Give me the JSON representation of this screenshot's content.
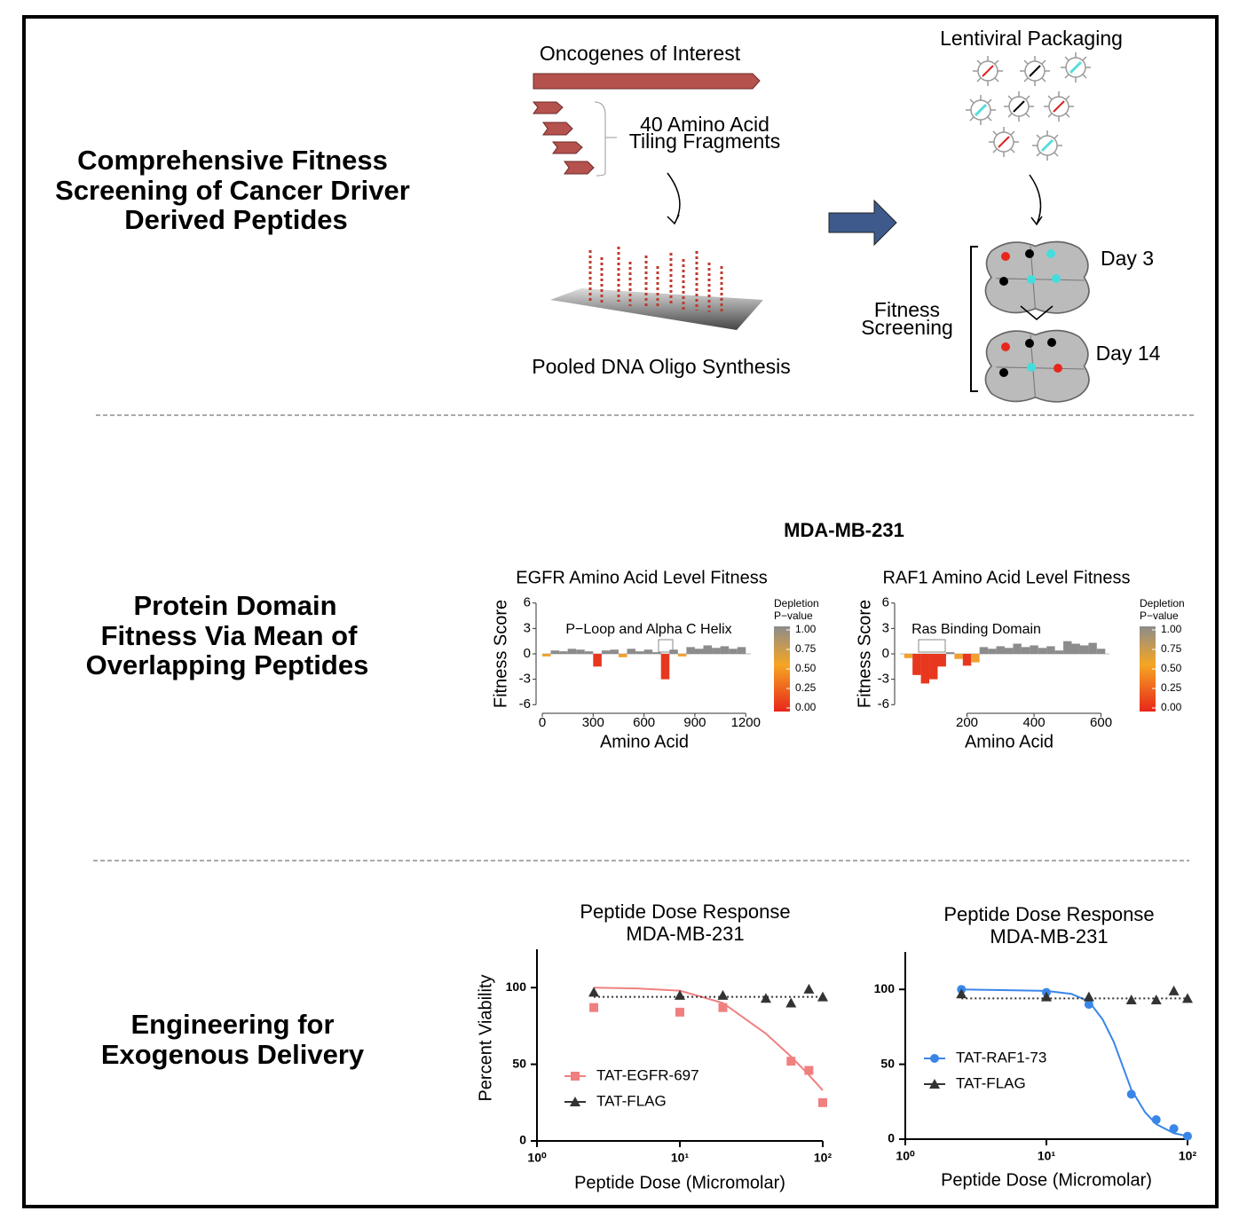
{
  "sections": [
    {
      "title_lines": [
        "Comprehensive Fitness",
        "Screening of Cancer Driver",
        "Derived Peptides"
      ]
    },
    {
      "title_lines": [
        "Protein Domain",
        "Fitness Via Mean of",
        "Overlapping Peptides"
      ]
    },
    {
      "title_lines": [
        "Engineering for",
        "Exogenous Delivery"
      ]
    }
  ],
  "workflow": {
    "oncogenes": "Oncogenes of Interest",
    "tiling_lines": [
      "40 Amino Acid",
      "Tiling Fragments"
    ],
    "synthesis": "Pooled DNA Oligo Synthesis",
    "packaging": "Lentiviral Packaging",
    "screening_lines": [
      "Fitness",
      "Screening"
    ],
    "day_early": "Day 3",
    "day_late": "Day 14"
  },
  "fitness_header": "MDA-MB-231",
  "chart_data": [
    {
      "type": "area",
      "title": "EGFR Amino Acid Level Fitness",
      "x_label": "Amino Acid",
      "y_label": "Fitness Score",
      "annotation": "P−Loop and Alpha C Helix",
      "x": [
        25,
        75,
        125,
        175,
        225,
        275,
        325,
        375,
        425,
        475,
        525,
        575,
        625,
        675,
        725,
        775,
        825,
        875,
        925,
        975,
        1025,
        1075,
        1125,
        1175
      ],
      "values": [
        -0.3,
        0.4,
        0.3,
        0.6,
        0.5,
        0.3,
        -1.5,
        0.4,
        0.5,
        -0.4,
        0.6,
        0.3,
        0.5,
        0.2,
        -3.0,
        0.5,
        -0.3,
        0.8,
        0.6,
        1.0,
        0.7,
        0.9,
        0.6,
        0.8
      ],
      "xlim": [
        0,
        1230
      ],
      "xticks": [
        0,
        300,
        600,
        900,
        1200
      ],
      "ylim": [
        -6.6,
        6.6
      ],
      "yticks": [
        -6,
        -3,
        0,
        3,
        6
      ],
      "legend": {
        "title_lines": [
          "Depletion",
          "P−value"
        ],
        "ticks": [
          {
            "value": 1,
            "label": "1.00"
          },
          {
            "value": 0.75,
            "label": "0.75"
          },
          {
            "value": 0.5,
            "label": "0.50"
          },
          {
            "value": 0.25,
            "label": "0.25"
          },
          {
            "value": 0,
            "label": "0.00"
          }
        ]
      }
    },
    {
      "type": "area",
      "title": "RAF1 Amino Acid Level Fitness",
      "x_label": "Amino Acid",
      "y_label": "Fitness Score",
      "annotation": "Ras Binding Domain",
      "x": [
        25,
        50,
        75,
        100,
        125,
        150,
        175,
        200,
        225,
        250,
        275,
        300,
        325,
        350,
        375,
        400,
        425,
        450,
        475,
        500,
        525,
        550,
        575,
        600
      ],
      "values": [
        -0.5,
        -2.5,
        -3.5,
        -3.0,
        -1.5,
        0.2,
        -0.6,
        -1.4,
        -1.0,
        0.8,
        0.6,
        0.9,
        0.7,
        1.2,
        0.8,
        1.0,
        0.7,
        0.9,
        0.4,
        1.5,
        1.2,
        1.0,
        1.3,
        0.6
      ],
      "xlim": [
        0,
        625
      ],
      "xticks": [
        200,
        400,
        600
      ],
      "ylim": [
        -6.6,
        6.6
      ],
      "yticks": [
        -6,
        -3,
        0,
        3,
        6
      ],
      "legend": {
        "title_lines": [
          "Depletion",
          "P−value"
        ],
        "ticks": [
          {
            "value": 1,
            "label": "1.00"
          },
          {
            "value": 0.75,
            "label": "0.75"
          },
          {
            "value": 0.5,
            "label": "0.50"
          },
          {
            "value": 0.25,
            "label": "0.25"
          },
          {
            "value": 0,
            "label": "0.00"
          }
        ]
      }
    },
    {
      "type": "dose",
      "title_lines": [
        "Peptide Dose Response",
        "MDA-MB-231"
      ],
      "x_label": "Peptide Dose (Micromolar)",
      "y_label": "Percent Viability",
      "log_x": true,
      "xlim": [
        1,
        100
      ],
      "xticks": [
        {
          "value": 1,
          "label": "10⁰"
        },
        {
          "value": 10,
          "label": "10¹"
        },
        {
          "value": 100,
          "label": "10²"
        }
      ],
      "ylim": [
        0,
        125
      ],
      "yticks": [
        0,
        50,
        100
      ],
      "series": [
        {
          "name": "TAT-EGFR-697",
          "color": "#f08080",
          "marker": "square",
          "x": [
            2.5,
            10,
            20,
            60,
            80,
            100
          ],
          "values": [
            87,
            84,
            87,
            52,
            46,
            25
          ],
          "fit_x": [
            2.5,
            5,
            10,
            20,
            40,
            60,
            80,
            100
          ],
          "fit_values": [
            100,
            99.5,
            98,
            90,
            70,
            55,
            43,
            33
          ]
        },
        {
          "name": "TAT-FLAG",
          "color": "#333333",
          "marker": "triangle",
          "x": [
            2.5,
            10,
            20,
            40,
            60,
            80,
            100
          ],
          "values": [
            97,
            95,
            95,
            93,
            90,
            99,
            94
          ],
          "fit_x": [
            2.5,
            100
          ],
          "fit_values": [
            94,
            94
          ]
        }
      ]
    },
    {
      "type": "dose",
      "title_lines": [
        "Peptide Dose Response",
        "MDA-MB-231"
      ],
      "x_label": "Peptide Dose (Micromolar)",
      "log_x": true,
      "xlim": [
        1,
        100
      ],
      "xticks": [
        {
          "value": 1,
          "label": "10⁰"
        },
        {
          "value": 10,
          "label": "10¹"
        },
        {
          "value": 100,
          "label": "10²"
        }
      ],
      "ylim": [
        0,
        125
      ],
      "yticks": [
        0,
        50,
        100
      ],
      "series": [
        {
          "name": "TAT-RAF1-73",
          "color": "#3a86e8",
          "marker": "circle",
          "x": [
            2.5,
            10,
            20,
            40,
            60,
            80,
            100
          ],
          "values": [
            100,
            98,
            90,
            30,
            13,
            7,
            2
          ],
          "fit_x": [
            2.5,
            10,
            15,
            20,
            25,
            30,
            40,
            50,
            60,
            80,
            100
          ],
          "fit_values": [
            100,
            99,
            97,
            92,
            80,
            65,
            33,
            18,
            10,
            4,
            2
          ]
        },
        {
          "name": "TAT-FLAG",
          "color": "#333333",
          "marker": "triangle",
          "x": [
            2.5,
            10,
            20,
            40,
            60,
            80,
            100
          ],
          "values": [
            97,
            95,
            95,
            93,
            93,
            99,
            94
          ],
          "fit_x": [
            2.5,
            100
          ],
          "fit_values": [
            94,
            94
          ]
        }
      ]
    }
  ]
}
